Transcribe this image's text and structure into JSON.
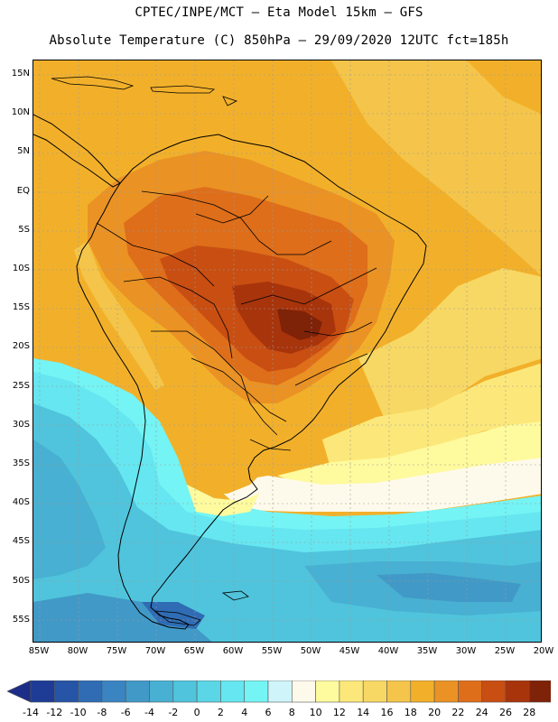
{
  "title": {
    "line1": "CPTEC/INPE/MCT –  Eta Model 15km – GFS",
    "line2": "Absolute Temperature (C) 850hPa – 29/09/2020 12UTC fct=185h"
  },
  "map": {
    "lat_labels": [
      "15N",
      "10N",
      "5N",
      "EQ",
      "5S",
      "10S",
      "15S",
      "20S",
      "25S",
      "30S",
      "35S",
      "40S",
      "45S",
      "50S",
      "55S"
    ],
    "lon_labels": [
      "85W",
      "80W",
      "75W",
      "70W",
      "65W",
      "60W",
      "55W",
      "50W",
      "45W",
      "40W",
      "35W",
      "30W",
      "25W",
      "20W"
    ],
    "field_description": "850hPa absolute temperature shaded field over South America"
  },
  "colorbar": {
    "labels": [
      "-14",
      "-12",
      "-10",
      "-8",
      "-6",
      "-4",
      "-2",
      "0",
      "2",
      "4",
      "6",
      "8",
      "10",
      "12",
      "14",
      "16",
      "18",
      "20",
      "22",
      "24",
      "26",
      "28"
    ],
    "colors": [
      "#1e3c96",
      "#2654a6",
      "#2f6cb4",
      "#3a84c2",
      "#4199c7",
      "#48b0d2",
      "#50c4dc",
      "#5ad6e6",
      "#66e6f0",
      "#74f4f4",
      "#cff4fa",
      "#fefaeb",
      "#fefa9e",
      "#fce87a",
      "#f8d864",
      "#f4c54a",
      "#f2b02a",
      "#ea9224",
      "#de6e1a",
      "#c84e12",
      "#a8340c",
      "#7e2208"
    ],
    "low_color": "#1c2d88",
    "high_color": "#7a0e26"
  }
}
